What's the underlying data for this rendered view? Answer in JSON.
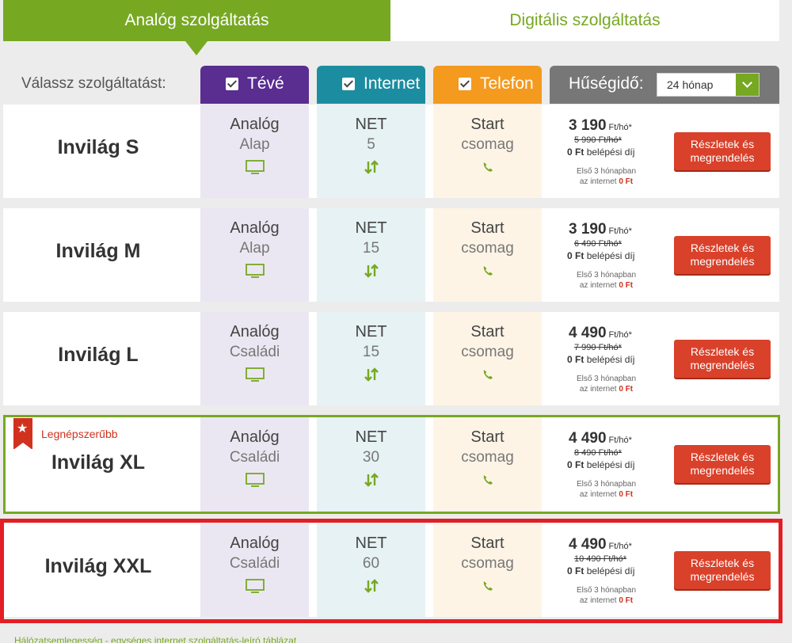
{
  "tabs": [
    {
      "label": "Analóg szolgáltatás",
      "active": true
    },
    {
      "label": "Digitális szolgáltatás",
      "active": false
    }
  ],
  "header": {
    "choose_label": "Válassz szolgáltatást:",
    "tv_label": "Tévé",
    "internet_label": "Internet",
    "phone_label": "Telefon",
    "loyalty_label": "Hűségidő:",
    "loyalty_value": "24 hónap"
  },
  "packages": [
    {
      "name": "Invilág S",
      "tv1": "Analóg",
      "tv2": "Alap",
      "net1": "NET",
      "net2": "5",
      "tel1": "Start",
      "tel2": "csomag",
      "price": "3 190",
      "unit": "Ft/hó*",
      "old_price": "5 990 Ft/hó*",
      "fee_amount": "0 Ft",
      "fee_text": "belépési díj",
      "promo_line1": "Első 3 hónapban",
      "promo_line2": "az internet",
      "promo_amount": "0 Ft",
      "button": "Részletek és megrendelés"
    },
    {
      "name": "Invilág M",
      "tv1": "Analóg",
      "tv2": "Alap",
      "net1": "NET",
      "net2": "15",
      "tel1": "Start",
      "tel2": "csomag",
      "price": "3 190",
      "unit": "Ft/hó*",
      "old_price": "6 490 Ft/hó*",
      "fee_amount": "0 Ft",
      "fee_text": "belépési díj",
      "promo_line1": "Első 3 hónapban",
      "promo_line2": "az internet",
      "promo_amount": "0 Ft",
      "button": "Részletek és megrendelés"
    },
    {
      "name": "Invilág L",
      "tv1": "Analóg",
      "tv2": "Családi",
      "net1": "NET",
      "net2": "15",
      "tel1": "Start",
      "tel2": "csomag",
      "price": "4 490",
      "unit": "Ft/hó*",
      "old_price": "7 990 Ft/hó*",
      "fee_amount": "0 Ft",
      "fee_text": "belépési díj",
      "promo_line1": "Első 3 hónapban",
      "promo_line2": "az internet",
      "promo_amount": "0 Ft",
      "button": "Részletek és megrendelés"
    },
    {
      "name": "Invilág XL",
      "tv1": "Analóg",
      "tv2": "Családi",
      "net1": "NET",
      "net2": "30",
      "tel1": "Start",
      "tel2": "csomag",
      "price": "4 490",
      "unit": "Ft/hó*",
      "old_price": "8 490 Ft/hó*",
      "fee_amount": "0 Ft",
      "fee_text": "belépési díj",
      "promo_line1": "Első 3 hónapban",
      "promo_line2": "az internet",
      "promo_amount": "0 Ft",
      "button": "Részletek és megrendelés"
    },
    {
      "name": "Invilág XXL",
      "tv1": "Analóg",
      "tv2": "Családi",
      "net1": "NET",
      "net2": "60",
      "tel1": "Start",
      "tel2": "csomag",
      "price": "4 490",
      "unit": "Ft/hó*",
      "old_price": "10 490 Ft/hó*",
      "fee_amount": "0 Ft",
      "fee_text": "belépési díj",
      "promo_line1": "Első 3 hónapban",
      "promo_line2": "az internet",
      "promo_amount": "0 Ft",
      "button": "Részletek és megrendelés"
    }
  ],
  "popular_badge": "Legnépszerűbb",
  "footer_link": "Hálózatsemlegesség - egységes internet szolgáltatás-leíró táblázat",
  "colors": {
    "accent": "#77a822",
    "tv": "#5a2d91",
    "internet": "#1c8da0",
    "phone": "#f49a1e",
    "loyalty": "#777777",
    "button": "#d9412b",
    "highlight": "#e31e24"
  },
  "icons": {
    "tv": "tv-icon",
    "internet": "updown-arrows-icon",
    "phone": "phone-icon",
    "popular": "star-ribbon-icon",
    "check": "checkbox-icon",
    "dropdown": "chevron-down-icon"
  }
}
